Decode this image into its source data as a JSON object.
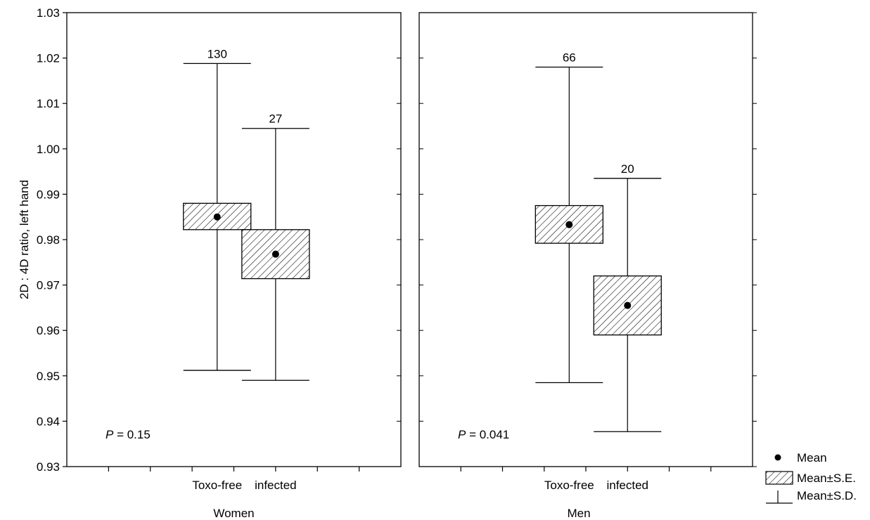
{
  "chart_data": {
    "type": "box",
    "ylabel": "2D : 4D ratio, left hand",
    "ylim": [
      0.93,
      1.03
    ],
    "yticks": [
      "0.93",
      "0.94",
      "0.95",
      "0.96",
      "0.97",
      "0.98",
      "0.99",
      "1.00",
      "1.01",
      "1.02",
      "1.03"
    ],
    "panels": [
      {
        "name": "Women",
        "xlabel": "Women",
        "p_value": "= 0.15",
        "groups": [
          {
            "category": "Toxo-free",
            "n": "130",
            "mean": 0.985,
            "se_low": 0.9822,
            "se_high": 0.988,
            "sd_low": 0.9512,
            "sd_high": 1.0188
          },
          {
            "category": "infected",
            "n": "27",
            "mean": 0.9768,
            "se_low": 0.9714,
            "se_high": 0.9822,
            "sd_low": 0.949,
            "sd_high": 1.0045
          }
        ]
      },
      {
        "name": "Men",
        "xlabel": "Men",
        "p_value": "= 0.041",
        "groups": [
          {
            "category": "Toxo-free",
            "n": "66",
            "mean": 0.9833,
            "se_low": 0.9792,
            "se_high": 0.9875,
            "sd_low": 0.9485,
            "sd_high": 1.018
          },
          {
            "category": "infected",
            "n": "20",
            "mean": 0.9655,
            "se_low": 0.959,
            "se_high": 0.972,
            "sd_low": 0.9377,
            "sd_high": 0.9935
          }
        ]
      }
    ],
    "p_symbol": "P",
    "legend": {
      "position": "bottom-right",
      "mean_label": "Mean",
      "se_label": "Mean±S.E.",
      "sd_label": "Mean±S.D."
    },
    "grid": false
  }
}
